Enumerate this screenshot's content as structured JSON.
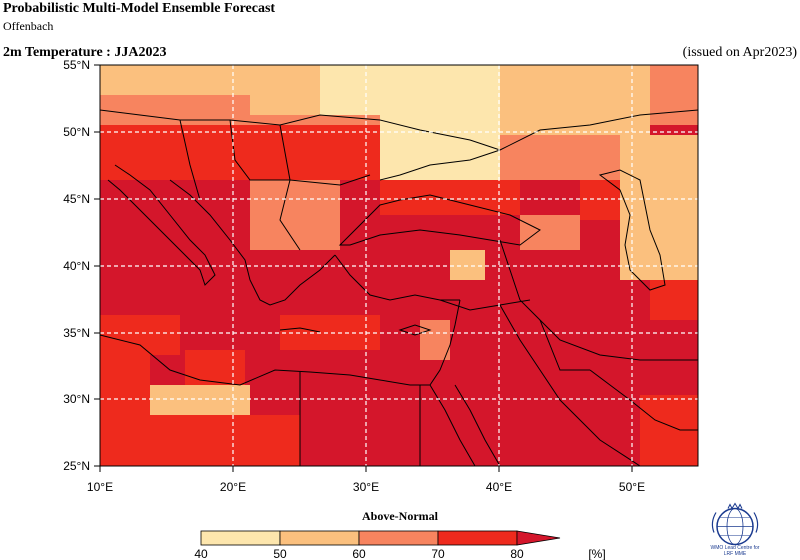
{
  "header": {
    "title": "Probabilistic Multi-Model Ensemble Forecast",
    "subtitle": "Offenbach",
    "field": "2m Temperature : JJA2023",
    "issued": "(issued on Apr2023)"
  },
  "map": {
    "lon_labels": [
      "10°E",
      "20°E",
      "30°E",
      "40°E",
      "50°E"
    ],
    "lat_labels": [
      "55°N",
      "50°N",
      "45°N",
      "40°N",
      "35°N",
      "30°N",
      "25°N"
    ]
  },
  "legend": {
    "title": "Above-Normal",
    "tick_labels": [
      "40",
      "50",
      "60",
      "70",
      "80"
    ],
    "unit": "[%]",
    "colors": [
      "#fde6ad",
      "#fbc07e",
      "#f7845f",
      "#ee2a1d",
      "#d4162b"
    ]
  },
  "logo": {
    "line1": "WMO Lead Centre for",
    "line2": "LRF MME"
  }
}
